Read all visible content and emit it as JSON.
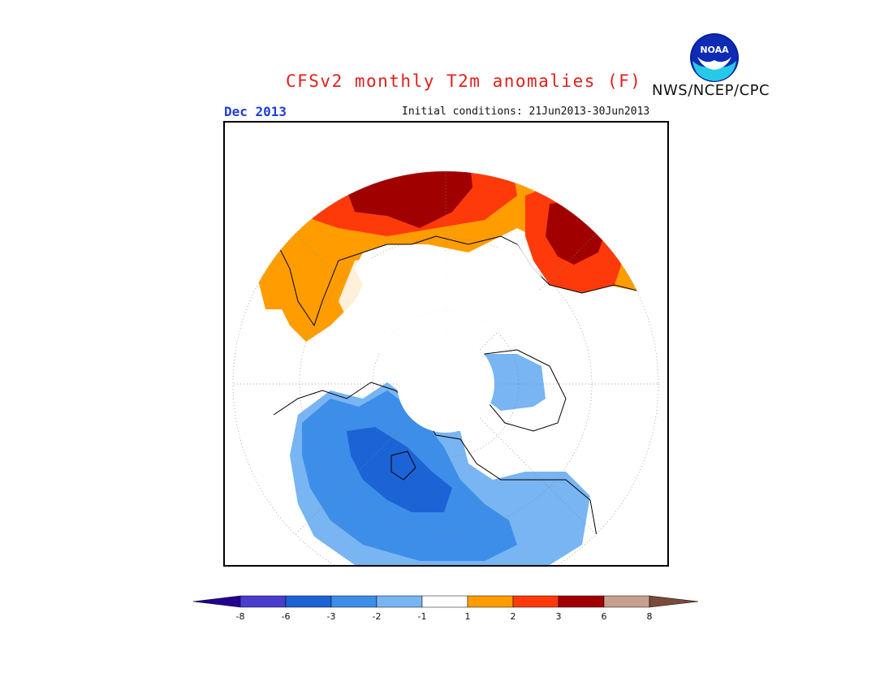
{
  "header": {
    "title": "CFSv2 monthly T2m anomalies (F)",
    "agency": "NWS/NCEP/CPC",
    "month": "Dec 2013",
    "initial_conditions": "Initial conditions: 21Jun2013-30Jun2013",
    "logo_text": "NOAA"
  },
  "map": {
    "projection": "north polar stereographic",
    "regions": [
      {
        "name": "Western Russia / Europe interior",
        "bin": "3 to 6",
        "color": "#a00000"
      },
      {
        "name": "Eastern Europe / Western Siberia ring",
        "bin": "2 to 3",
        "color": "#ff3a0a"
      },
      {
        "name": "Europe / North Africa fringe",
        "bin": "1 to 2",
        "color": "#ff9d00"
      },
      {
        "name": "Central Canada core",
        "bin": "-6 to -3",
        "color": "#1c63d6"
      },
      {
        "name": "Western Canada / USA",
        "bin": "-3 to -2",
        "color": "#3d8ee8"
      },
      {
        "name": "Greenland / Hudson Bay fringe",
        "bin": "-2 to -1",
        "color": "#78b5f2"
      }
    ]
  },
  "colorbar": {
    "labels": [
      "-8",
      "-6",
      "-3",
      "-2",
      "-1",
      "1",
      "2",
      "3",
      "6",
      "8"
    ],
    "colors": [
      "#220090",
      "#4a3ccc",
      "#1c63d6",
      "#3d8ee8",
      "#78b5f2",
      "#ffffff",
      "#ff9d00",
      "#ff3a0a",
      "#a00000",
      "#c8a08e",
      "#7a4a3a"
    ]
  }
}
